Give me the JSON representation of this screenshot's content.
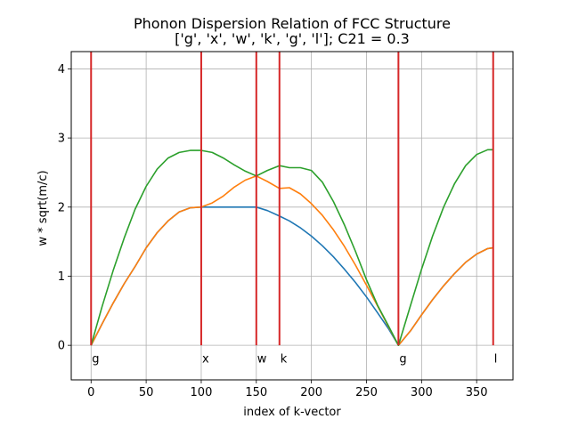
{
  "chart_data": {
    "type": "line",
    "title": "Phonon Dispersion Relation of FCC Structure",
    "subtitle": "['g', 'x', 'w', 'k', 'g', 'l']; C21 = 0.3",
    "xlabel": "index of k-vector",
    "ylabel": "w * sqrt(m/c)",
    "xlim": [
      -18,
      383
    ],
    "ylim": [
      -0.5,
      4.25
    ],
    "xticks": [
      0,
      50,
      100,
      150,
      200,
      250,
      300,
      350
    ],
    "yticks": [
      0,
      1,
      2,
      3,
      4
    ],
    "grid": true,
    "symmetry_points": [
      {
        "label": "g",
        "x": 0
      },
      {
        "label": "x",
        "x": 100
      },
      {
        "label": "w",
        "x": 150
      },
      {
        "label": "k",
        "x": 171
      },
      {
        "label": "g",
        "x": 279
      },
      {
        "label": "l",
        "x": 365
      }
    ],
    "series": [
      {
        "color": "#1f77b4",
        "x": [
          0,
          10,
          20,
          30,
          40,
          50,
          60,
          70,
          80,
          90,
          100,
          110,
          120,
          130,
          140,
          150,
          160,
          171,
          180,
          190,
          200,
          210,
          220,
          230,
          240,
          250,
          260,
          270,
          279,
          290,
          300,
          310,
          320,
          330,
          340,
          350,
          360,
          365
        ],
        "y": [
          0,
          0.31,
          0.61,
          0.89,
          1.14,
          1.41,
          1.63,
          1.8,
          1.93,
          1.99,
          2.0,
          2.0,
          2.0,
          2.0,
          2.0,
          2.0,
          1.95,
          1.87,
          1.8,
          1.7,
          1.58,
          1.44,
          1.28,
          1.1,
          0.91,
          0.7,
          0.47,
          0.24,
          0,
          0.21,
          0.44,
          0.66,
          0.86,
          1.04,
          1.2,
          1.32,
          1.4,
          1.41
        ]
      },
      {
        "color": "#ff7f0e",
        "x": [
          0,
          10,
          20,
          30,
          40,
          50,
          60,
          70,
          80,
          90,
          100,
          110,
          120,
          130,
          140,
          150,
          160,
          171,
          180,
          190,
          200,
          210,
          220,
          230,
          240,
          250,
          260,
          270,
          279,
          290,
          300,
          310,
          320,
          330,
          340,
          350,
          360,
          365
        ],
        "y": [
          0,
          0.31,
          0.61,
          0.89,
          1.14,
          1.41,
          1.63,
          1.8,
          1.93,
          1.99,
          2.0,
          2.06,
          2.16,
          2.29,
          2.39,
          2.45,
          2.37,
          2.27,
          2.28,
          2.19,
          2.05,
          1.88,
          1.67,
          1.43,
          1.16,
          0.87,
          0.57,
          0.27,
          0,
          0.21,
          0.44,
          0.66,
          0.86,
          1.04,
          1.2,
          1.32,
          1.4,
          1.41
        ]
      },
      {
        "color": "#2ca02c",
        "x": [
          0,
          10,
          20,
          30,
          40,
          50,
          60,
          70,
          80,
          90,
          100,
          110,
          120,
          130,
          140,
          150,
          160,
          171,
          180,
          190,
          200,
          210,
          220,
          230,
          240,
          250,
          260,
          270,
          279,
          290,
          300,
          310,
          320,
          330,
          340,
          350,
          360,
          365
        ],
        "y": [
          0,
          0.56,
          1.08,
          1.55,
          1.97,
          2.3,
          2.55,
          2.71,
          2.79,
          2.82,
          2.82,
          2.79,
          2.71,
          2.61,
          2.52,
          2.45,
          2.53,
          2.6,
          2.57,
          2.57,
          2.53,
          2.36,
          2.08,
          1.74,
          1.36,
          0.95,
          0.58,
          0.28,
          0,
          0.58,
          1.1,
          1.58,
          2.0,
          2.34,
          2.6,
          2.76,
          2.83,
          2.83
        ]
      }
    ]
  }
}
